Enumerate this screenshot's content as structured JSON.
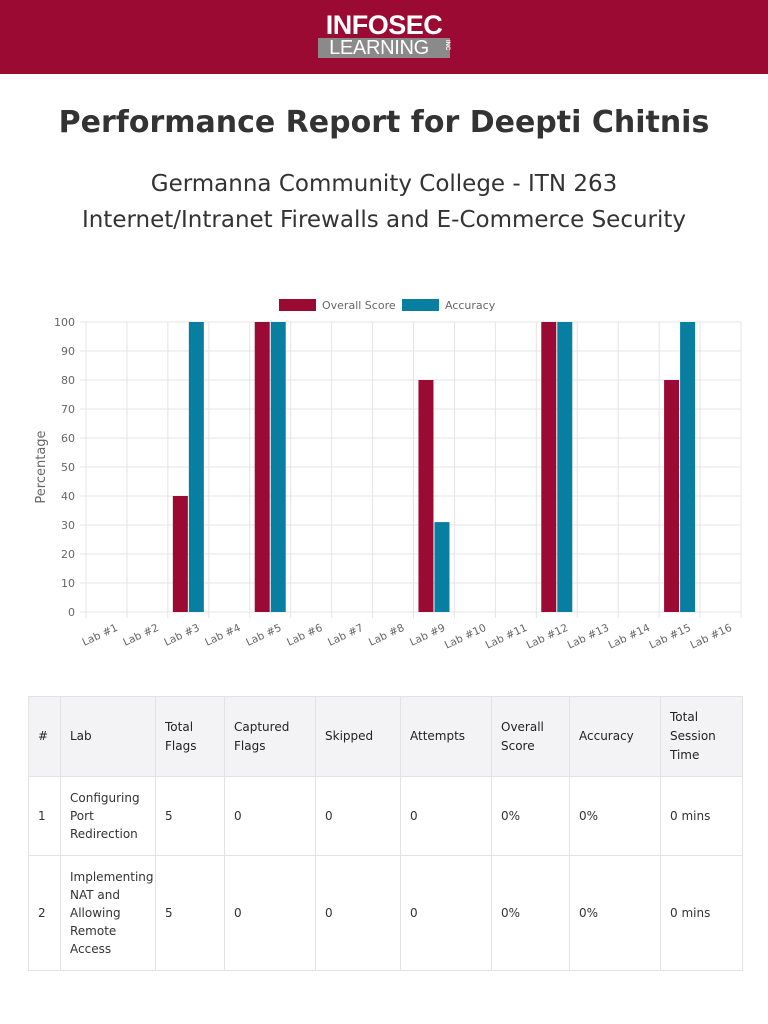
{
  "brand": {
    "logo_top": "INFOSEC",
    "logo_bottom": "LEARNING",
    "logo_inc": "INC",
    "header_color": "#9a0a32"
  },
  "report": {
    "title": "Performance Report for Deepti Chitnis",
    "subtitle_line1": "Germanna Community College - ITN 263",
    "subtitle_line2": "Internet/Intranet Firewalls and E-Commerce Security"
  },
  "chart_data": {
    "type": "bar",
    "categories": [
      "Lab #1",
      "Lab #2",
      "Lab #3",
      "Lab #4",
      "Lab #5",
      "Lab #6",
      "Lab #7",
      "Lab #8",
      "Lab #9",
      "Lab #10",
      "Lab #11",
      "Lab #12",
      "Lab #13",
      "Lab #14",
      "Lab #15",
      "Lab #16"
    ],
    "series": [
      {
        "name": "Overall Score",
        "color": "#9a0a32",
        "values": [
          0,
          0,
          40,
          0,
          100,
          0,
          0,
          0,
          80,
          0,
          0,
          100,
          0,
          0,
          80,
          0
        ]
      },
      {
        "name": "Accuracy",
        "color": "#087ea0",
        "values": [
          0,
          0,
          100,
          0,
          100,
          0,
          0,
          0,
          31,
          0,
          0,
          100,
          0,
          0,
          100,
          0
        ]
      }
    ],
    "title": "",
    "xlabel": "",
    "ylabel": "Percentage",
    "ylim": [
      0,
      100
    ],
    "yticks": [
      0,
      10,
      20,
      30,
      40,
      50,
      60,
      70,
      80,
      90,
      100
    ],
    "grid": true,
    "legend": "top"
  },
  "table": {
    "headers": [
      "#",
      "Lab",
      "Total Flags",
      "Captured Flags",
      "Skipped",
      "Attempts",
      "Overall Score",
      "Accuracy",
      "Total Session Time"
    ],
    "rows": [
      [
        "1",
        "Configuring Port Redirection",
        "5",
        "0",
        "0",
        "0",
        "0%",
        "0%",
        "0 mins"
      ],
      [
        "2",
        "Implementing NAT and Allowing Remote Access",
        "5",
        "0",
        "0",
        "0",
        "0%",
        "0%",
        "0 mins"
      ]
    ]
  }
}
